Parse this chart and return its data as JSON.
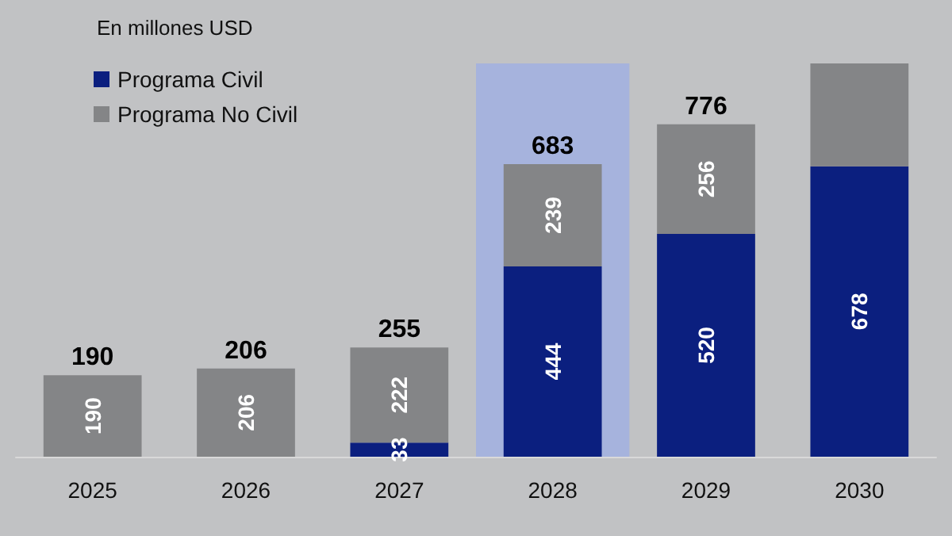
{
  "chart_data": {
    "type": "bar",
    "subtitle": "En millones USD",
    "stacked": true,
    "legend": "top left",
    "grid": false,
    "categories": [
      "2025",
      "2026",
      "2027",
      "2028",
      "2029",
      "2030"
    ],
    "series": [
      {
        "name": "Programa Civil",
        "color": "#0b1f7f",
        "values": [
          null,
          null,
          33,
          444,
          520,
          678
        ],
        "value_labels": [
          null,
          null,
          "33",
          "444",
          "520",
          "678"
        ]
      },
      {
        "name": "Programa No Civil",
        "color": "#848587",
        "values": [
          190,
          206,
          222,
          239,
          256,
          240
        ],
        "value_labels": [
          "190",
          "206",
          "222",
          "239",
          "256",
          null
        ]
      }
    ],
    "totals": [
      "190",
      "206",
      "255",
      "683",
      "776",
      null
    ],
    "bands": [
      {
        "axis": "x",
        "from": "2028",
        "to": "2028",
        "color": "#a6b3dd"
      }
    ]
  }
}
